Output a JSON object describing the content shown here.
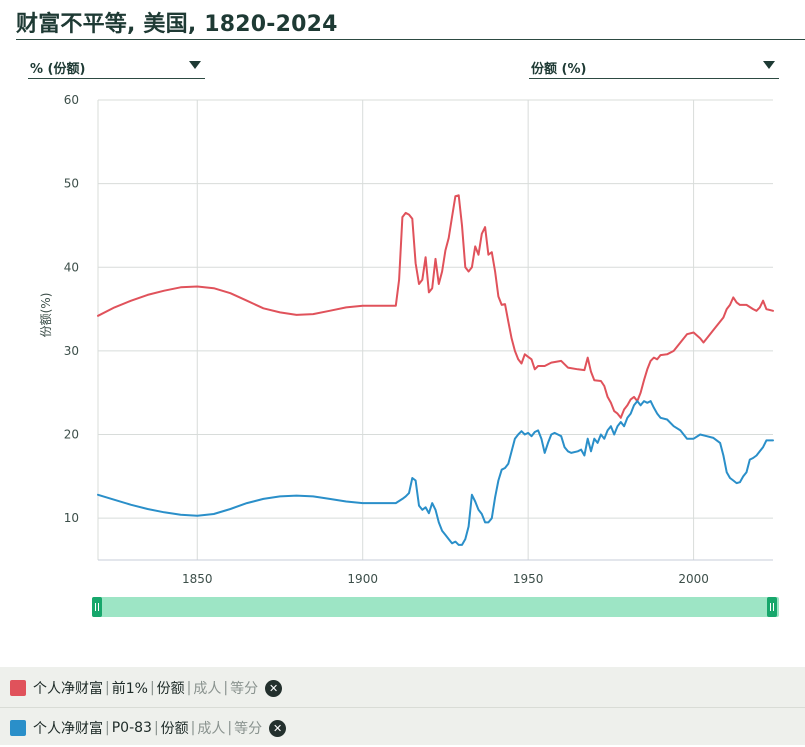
{
  "title": "财富不平等, 美国, 1820-2024",
  "controls": {
    "left_dropdown": "% (份额)",
    "right_dropdown": "份额 (%)"
  },
  "colors": {
    "series_top1": "#e0525b",
    "series_p0_83": "#2a8fc9",
    "slider_track": "#9de5c5",
    "slider_handle": "#17a76c"
  },
  "legend": [
    {
      "parts": [
        "个人净财富",
        "前1%",
        "份额"
      ],
      "muted": [
        "成人",
        "等分"
      ],
      "color_key": "series_top1"
    },
    {
      "parts": [
        "个人净财富",
        "P0-83",
        "份额"
      ],
      "muted": [
        "成人",
        "等分"
      ],
      "color_key": "series_p0_83"
    }
  ],
  "chart_data": {
    "type": "line",
    "title": "财富不平等, 美国, 1820-2024",
    "ylabel": "份额(%)",
    "xlabel": "",
    "xlim": [
      1820,
      2024
    ],
    "ylim": [
      5,
      60
    ],
    "x_ticks": [
      1850,
      1900,
      1950,
      2000
    ],
    "y_ticks": [
      10,
      20,
      30,
      40,
      50,
      60
    ],
    "grid": true,
    "series": [
      {
        "name": "个人净财富 | 前1% | 份额",
        "color": "#e0525b",
        "points": [
          [
            1820,
            34.2
          ],
          [
            1825,
            35.2
          ],
          [
            1830,
            36.0
          ],
          [
            1835,
            36.7
          ],
          [
            1840,
            37.2
          ],
          [
            1845,
            37.6
          ],
          [
            1850,
            37.7
          ],
          [
            1855,
            37.5
          ],
          [
            1860,
            36.9
          ],
          [
            1865,
            36.0
          ],
          [
            1870,
            35.1
          ],
          [
            1875,
            34.6
          ],
          [
            1880,
            34.3
          ],
          [
            1885,
            34.4
          ],
          [
            1890,
            34.8
          ],
          [
            1895,
            35.2
          ],
          [
            1900,
            35.4
          ],
          [
            1905,
            35.4
          ],
          [
            1910,
            35.4
          ],
          [
            1911,
            38.5
          ],
          [
            1912,
            46.0
          ],
          [
            1913,
            46.5
          ],
          [
            1914,
            46.3
          ],
          [
            1915,
            45.8
          ],
          [
            1916,
            40.5
          ],
          [
            1917,
            38.0
          ],
          [
            1918,
            38.5
          ],
          [
            1919,
            41.2
          ],
          [
            1920,
            37.0
          ],
          [
            1921,
            37.5
          ],
          [
            1922,
            41.0
          ],
          [
            1923,
            38.0
          ],
          [
            1924,
            39.5
          ],
          [
            1925,
            42.0
          ],
          [
            1926,
            43.5
          ],
          [
            1927,
            46.0
          ],
          [
            1928,
            48.5
          ],
          [
            1929,
            48.6
          ],
          [
            1930,
            45.0
          ],
          [
            1931,
            40.0
          ],
          [
            1932,
            39.5
          ],
          [
            1933,
            40.0
          ],
          [
            1934,
            42.5
          ],
          [
            1935,
            41.5
          ],
          [
            1936,
            44.0
          ],
          [
            1937,
            44.8
          ],
          [
            1938,
            41.5
          ],
          [
            1939,
            41.8
          ],
          [
            1940,
            39.5
          ],
          [
            1941,
            36.5
          ],
          [
            1942,
            35.5
          ],
          [
            1943,
            35.6
          ],
          [
            1944,
            33.5
          ],
          [
            1945,
            31.5
          ],
          [
            1946,
            30.0
          ],
          [
            1947,
            29.0
          ],
          [
            1948,
            28.5
          ],
          [
            1949,
            29.6
          ],
          [
            1950,
            29.3
          ],
          [
            1951,
            29.0
          ],
          [
            1952,
            27.8
          ],
          [
            1953,
            28.2
          ],
          [
            1955,
            28.2
          ],
          [
            1957,
            28.6
          ],
          [
            1960,
            28.8
          ],
          [
            1962,
            28.0
          ],
          [
            1965,
            27.8
          ],
          [
            1967,
            27.7
          ],
          [
            1968,
            29.2
          ],
          [
            1969,
            27.5
          ],
          [
            1970,
            26.5
          ],
          [
            1972,
            26.4
          ],
          [
            1973,
            25.8
          ],
          [
            1974,
            24.5
          ],
          [
            1975,
            23.8
          ],
          [
            1976,
            22.8
          ],
          [
            1977,
            22.5
          ],
          [
            1978,
            22.0
          ],
          [
            1979,
            23.0
          ],
          [
            1980,
            23.5
          ],
          [
            1981,
            24.2
          ],
          [
            1982,
            24.5
          ],
          [
            1983,
            24.0
          ],
          [
            1984,
            25.0
          ],
          [
            1985,
            26.5
          ],
          [
            1986,
            27.8
          ],
          [
            1987,
            28.8
          ],
          [
            1988,
            29.2
          ],
          [
            1989,
            29.0
          ],
          [
            1990,
            29.5
          ],
          [
            1992,
            29.6
          ],
          [
            1994,
            30.0
          ],
          [
            1996,
            31.0
          ],
          [
            1998,
            32.0
          ],
          [
            2000,
            32.2
          ],
          [
            2002,
            31.5
          ],
          [
            2003,
            31.0
          ],
          [
            2004,
            31.5
          ],
          [
            2006,
            32.5
          ],
          [
            2008,
            33.5
          ],
          [
            2009,
            34.0
          ],
          [
            2010,
            35.0
          ],
          [
            2011,
            35.5
          ],
          [
            2012,
            36.4
          ],
          [
            2013,
            35.8
          ],
          [
            2014,
            35.5
          ],
          [
            2016,
            35.5
          ],
          [
            2018,
            35.0
          ],
          [
            2019,
            34.8
          ],
          [
            2020,
            35.2
          ],
          [
            2021,
            36.0
          ],
          [
            2022,
            35.0
          ],
          [
            2024,
            34.8
          ]
        ]
      },
      {
        "name": "个人净财富 | P0-83 | 份额",
        "color": "#2a8fc9",
        "points": [
          [
            1820,
            12.8
          ],
          [
            1825,
            12.2
          ],
          [
            1830,
            11.6
          ],
          [
            1835,
            11.1
          ],
          [
            1840,
            10.7
          ],
          [
            1845,
            10.4
          ],
          [
            1850,
            10.3
          ],
          [
            1855,
            10.5
          ],
          [
            1860,
            11.1
          ],
          [
            1865,
            11.8
          ],
          [
            1870,
            12.3
          ],
          [
            1875,
            12.6
          ],
          [
            1880,
            12.7
          ],
          [
            1885,
            12.6
          ],
          [
            1890,
            12.3
          ],
          [
            1895,
            12.0
          ],
          [
            1900,
            11.8
          ],
          [
            1905,
            11.8
          ],
          [
            1910,
            11.8
          ],
          [
            1912,
            12.3
          ],
          [
            1913,
            12.6
          ],
          [
            1914,
            13.0
          ],
          [
            1915,
            14.8
          ],
          [
            1916,
            14.5
          ],
          [
            1917,
            11.5
          ],
          [
            1918,
            11.0
          ],
          [
            1919,
            11.3
          ],
          [
            1920,
            10.6
          ],
          [
            1921,
            11.8
          ],
          [
            1922,
            11.0
          ],
          [
            1923,
            9.5
          ],
          [
            1924,
            8.5
          ],
          [
            1925,
            8.0
          ],
          [
            1926,
            7.5
          ],
          [
            1927,
            7.0
          ],
          [
            1928,
            7.2
          ],
          [
            1929,
            6.8
          ],
          [
            1930,
            6.8
          ],
          [
            1931,
            7.5
          ],
          [
            1932,
            9.0
          ],
          [
            1933,
            12.8
          ],
          [
            1934,
            12.0
          ],
          [
            1935,
            11.0
          ],
          [
            1936,
            10.5
          ],
          [
            1937,
            9.5
          ],
          [
            1938,
            9.5
          ],
          [
            1939,
            10.0
          ],
          [
            1940,
            12.5
          ],
          [
            1941,
            14.5
          ],
          [
            1942,
            15.8
          ],
          [
            1943,
            16.0
          ],
          [
            1944,
            16.5
          ],
          [
            1945,
            18.0
          ],
          [
            1946,
            19.5
          ],
          [
            1947,
            20.0
          ],
          [
            1948,
            20.4
          ],
          [
            1949,
            20.0
          ],
          [
            1950,
            20.2
          ],
          [
            1951,
            19.8
          ],
          [
            1952,
            20.3
          ],
          [
            1953,
            20.5
          ],
          [
            1954,
            19.5
          ],
          [
            1955,
            17.8
          ],
          [
            1956,
            19.0
          ],
          [
            1957,
            20.0
          ],
          [
            1958,
            20.2
          ],
          [
            1959,
            20.0
          ],
          [
            1960,
            19.8
          ],
          [
            1961,
            18.5
          ],
          [
            1962,
            18.0
          ],
          [
            1963,
            17.8
          ],
          [
            1965,
            18.0
          ],
          [
            1966,
            18.2
          ],
          [
            1967,
            17.5
          ],
          [
            1968,
            19.5
          ],
          [
            1969,
            18.0
          ],
          [
            1970,
            19.5
          ],
          [
            1971,
            19.0
          ],
          [
            1972,
            20.0
          ],
          [
            1973,
            19.5
          ],
          [
            1974,
            20.5
          ],
          [
            1975,
            21.0
          ],
          [
            1976,
            20.0
          ],
          [
            1977,
            21.0
          ],
          [
            1978,
            21.5
          ],
          [
            1979,
            21.0
          ],
          [
            1980,
            22.0
          ],
          [
            1981,
            22.5
          ],
          [
            1982,
            23.5
          ],
          [
            1983,
            24.0
          ],
          [
            1984,
            23.5
          ],
          [
            1985,
            24.0
          ],
          [
            1986,
            23.8
          ],
          [
            1987,
            24.0
          ],
          [
            1988,
            23.2
          ],
          [
            1989,
            22.5
          ],
          [
            1990,
            22.0
          ],
          [
            1992,
            21.8
          ],
          [
            1994,
            21.0
          ],
          [
            1996,
            20.5
          ],
          [
            1998,
            19.5
          ],
          [
            2000,
            19.5
          ],
          [
            2002,
            20.0
          ],
          [
            2004,
            19.8
          ],
          [
            2006,
            19.6
          ],
          [
            2008,
            19.0
          ],
          [
            2009,
            17.5
          ],
          [
            2010,
            15.5
          ],
          [
            2011,
            14.8
          ],
          [
            2012,
            14.5
          ],
          [
            2013,
            14.2
          ],
          [
            2014,
            14.3
          ],
          [
            2015,
            15.0
          ],
          [
            2016,
            15.5
          ],
          [
            2017,
            17.0
          ],
          [
            2018,
            17.2
          ],
          [
            2019,
            17.5
          ],
          [
            2020,
            18.0
          ],
          [
            2021,
            18.5
          ],
          [
            2022,
            19.3
          ],
          [
            2024,
            19.3
          ]
        ]
      }
    ]
  }
}
